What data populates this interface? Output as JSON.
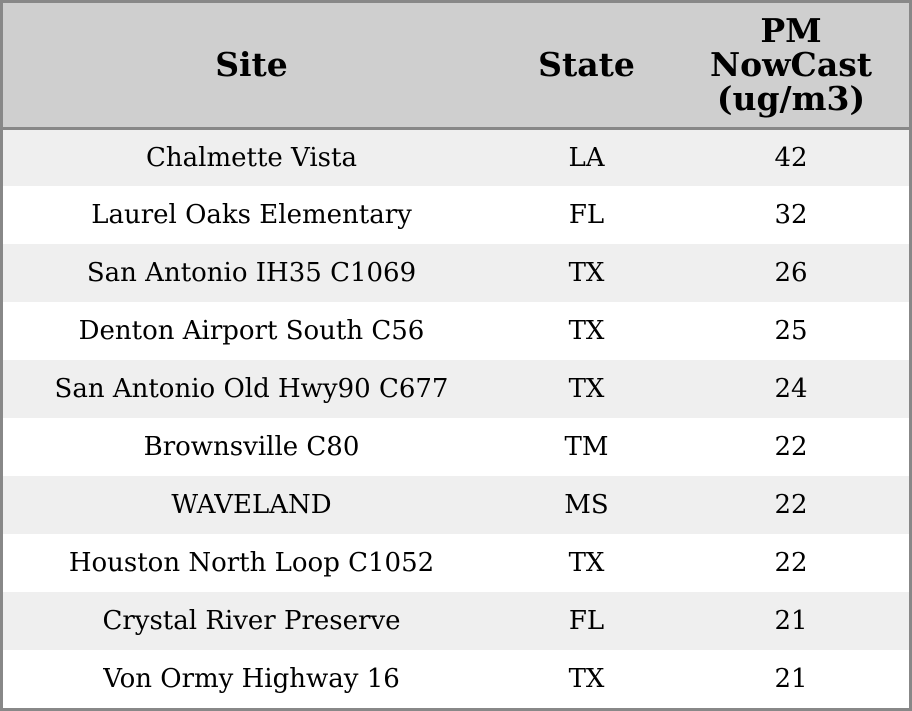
{
  "table": {
    "headers": {
      "site": "Site",
      "state": "State",
      "pm_line1": "PM",
      "pm_line2": "NowCast",
      "pm_line3": "(ug/m3)"
    },
    "rows": [
      {
        "site": "Chalmette Vista",
        "state": "LA",
        "pm": "42"
      },
      {
        "site": "Laurel Oaks Elementary",
        "state": "FL",
        "pm": "32"
      },
      {
        "site": "San Antonio IH35 C1069",
        "state": "TX",
        "pm": "26"
      },
      {
        "site": "Denton Airport South C56",
        "state": "TX",
        "pm": "25"
      },
      {
        "site": "San Antonio Old Hwy90 C677",
        "state": "TX",
        "pm": "24"
      },
      {
        "site": "Brownsville C80",
        "state": "TM",
        "pm": "22"
      },
      {
        "site": "WAVELAND",
        "state": "MS",
        "pm": "22"
      },
      {
        "site": "Houston North Loop C1052",
        "state": "TX",
        "pm": "22"
      },
      {
        "site": "Crystal River Preserve",
        "state": "FL",
        "pm": "21"
      },
      {
        "site": "Von Ormy Highway 16",
        "state": "TX",
        "pm": "21"
      }
    ]
  },
  "colors": {
    "header_bg": "#cfcfcf",
    "row_alt_bg": "#efefef",
    "border": "#888888"
  }
}
